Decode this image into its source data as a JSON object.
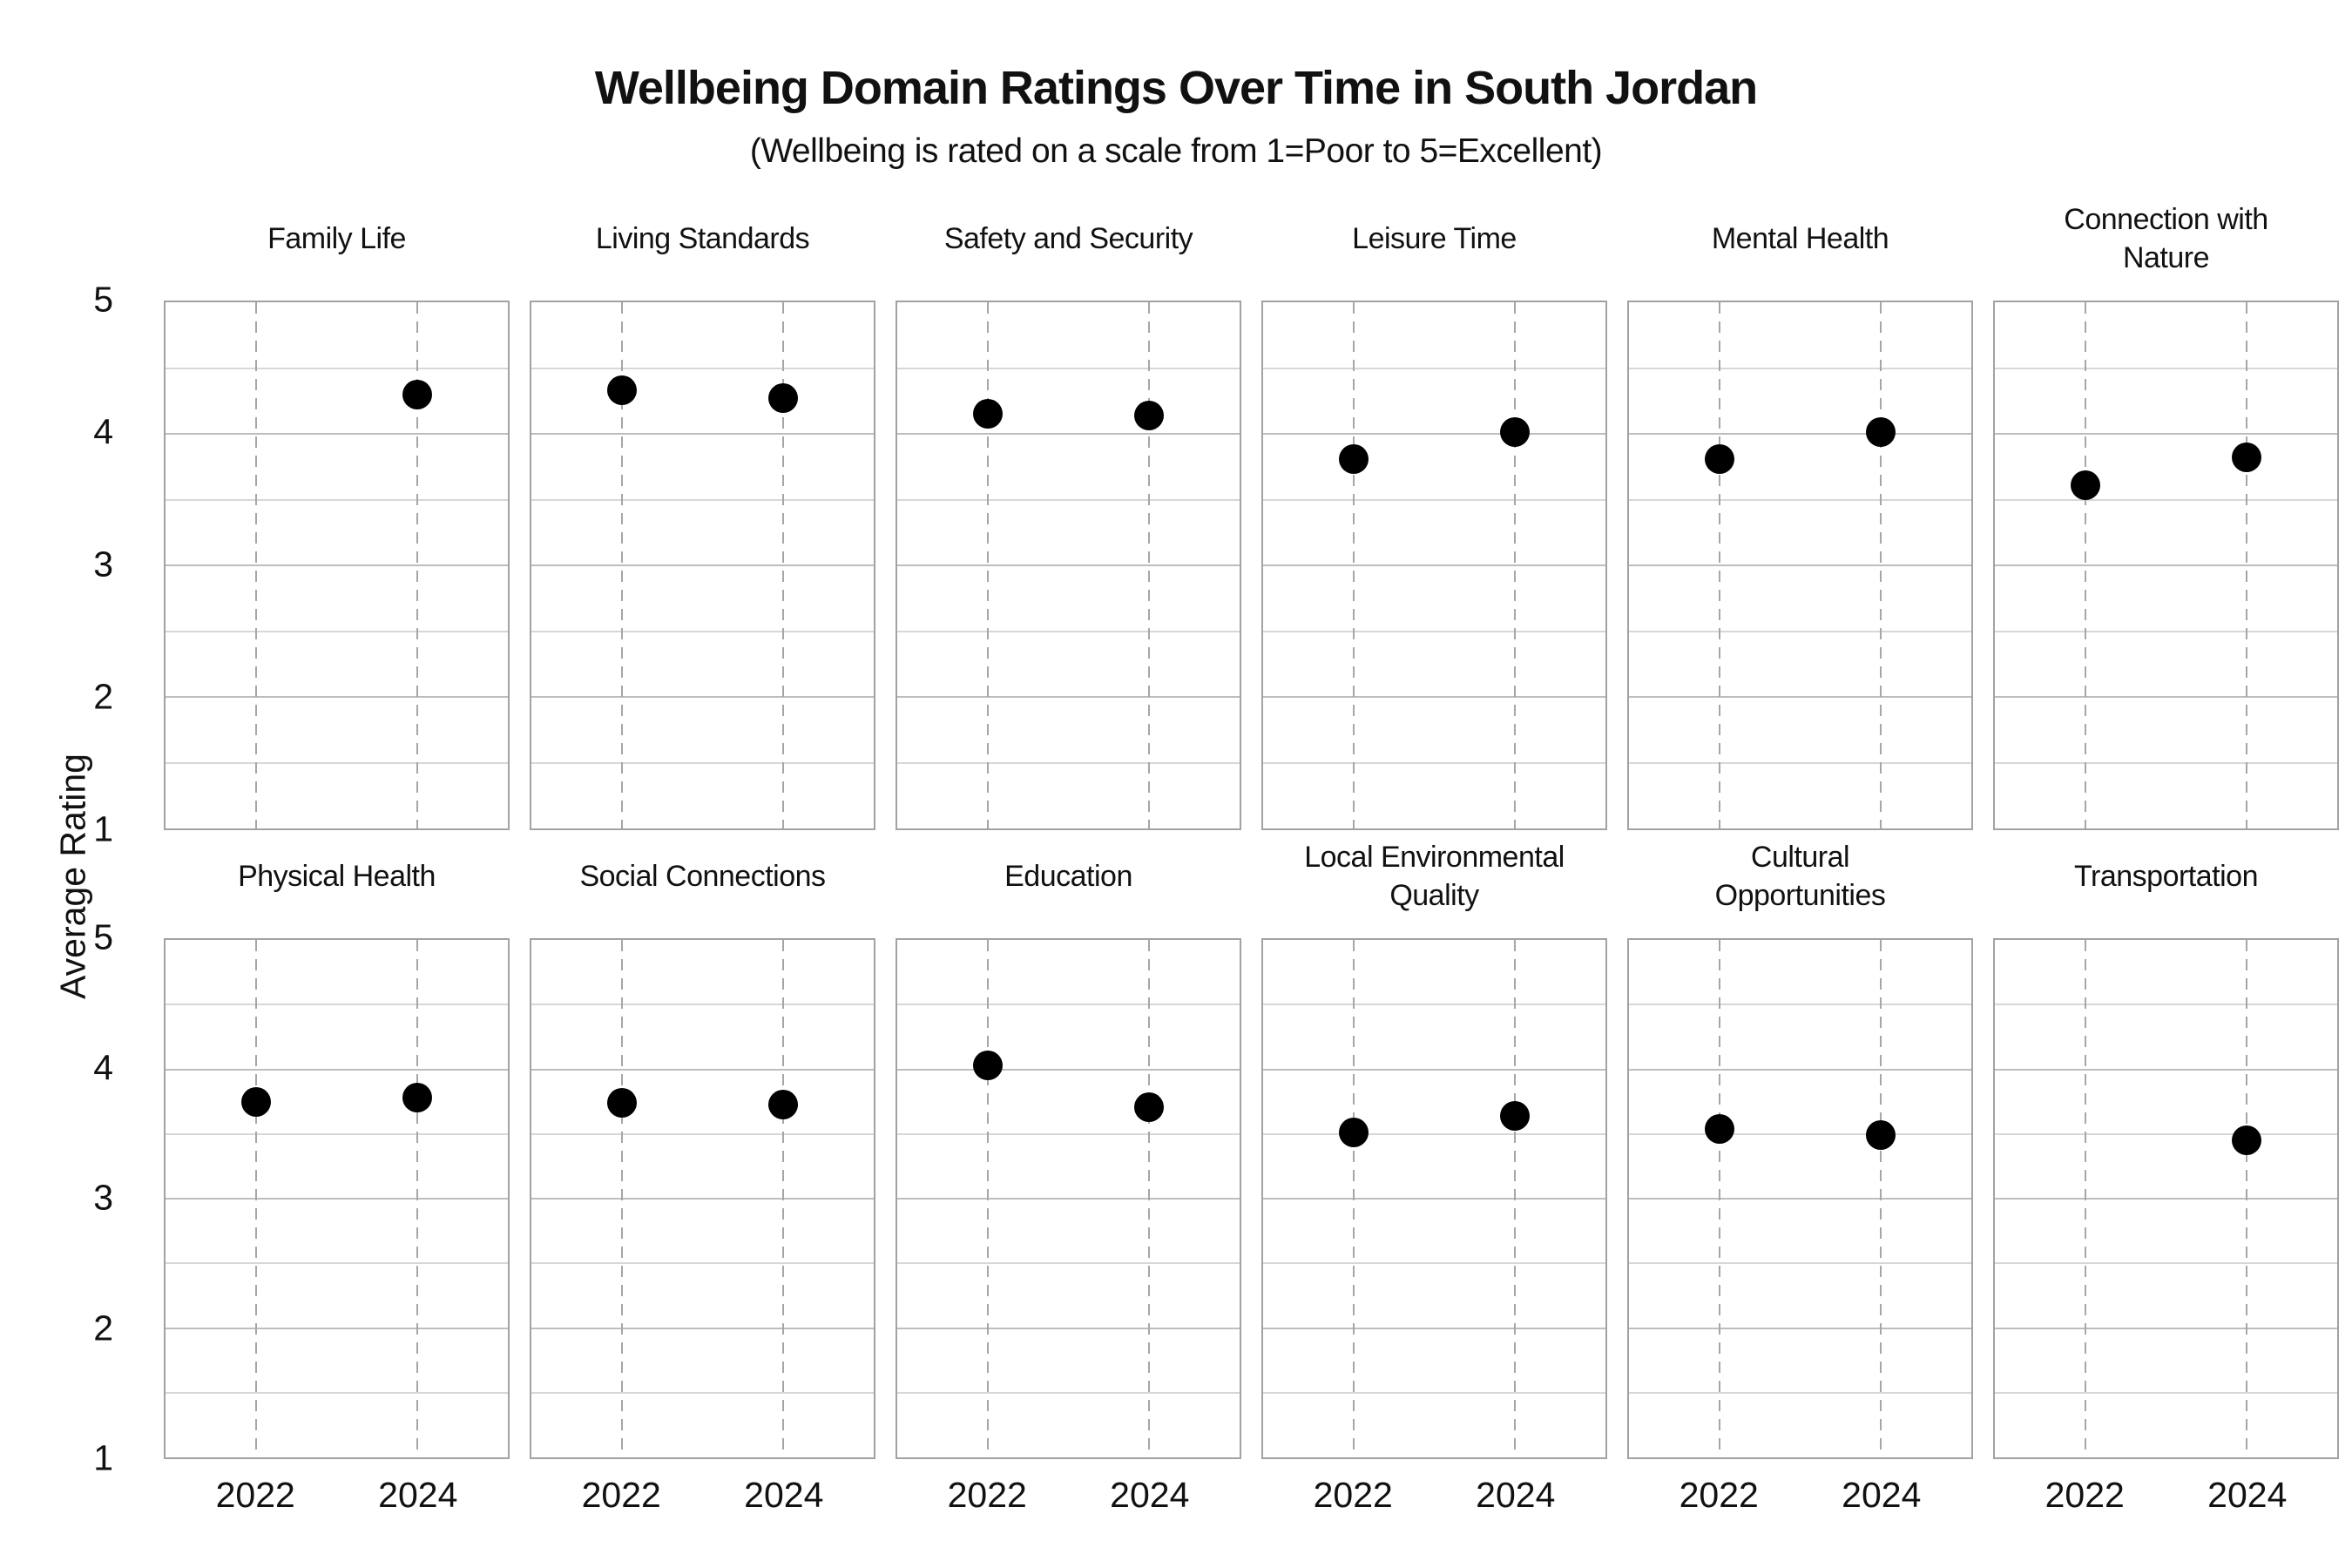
{
  "chart_data": {
    "type": "scatter",
    "title": "Wellbeing Domain Ratings Over Time in South Jordan",
    "subtitle": "(Wellbeing is rated on a scale from 1=Poor to 5=Excellent)",
    "ylabel": "Average Rating",
    "x_categories": [
      "2022",
      "2024"
    ],
    "ylim": [
      1,
      5
    ],
    "yticks": [
      5,
      4,
      3,
      2,
      1
    ],
    "minor_gridlines_every": 0.5,
    "grid": "on",
    "layout": {
      "rows": 2,
      "cols": 6
    },
    "marker_color": "#000000",
    "panels": [
      {
        "title": "Family Life",
        "values": [
          null,
          4.3
        ]
      },
      {
        "title": "Living Standards",
        "values": [
          4.33,
          4.27
        ]
      },
      {
        "title": "Safety and Security",
        "values": [
          4.15,
          4.14
        ]
      },
      {
        "title": "Leisure Time",
        "values": [
          3.81,
          4.01
        ]
      },
      {
        "title": "Mental Health",
        "values": [
          3.81,
          4.01
        ]
      },
      {
        "title": "Connection with\nNature",
        "values": [
          3.61,
          3.82
        ]
      },
      {
        "title": "Physical Health",
        "values": [
          3.75,
          3.78
        ]
      },
      {
        "title": "Social Connections",
        "values": [
          3.74,
          3.73
        ]
      },
      {
        "title": "Education",
        "values": [
          4.03,
          3.71
        ]
      },
      {
        "title": "Local Environmental\nQuality",
        "values": [
          3.51,
          3.64
        ]
      },
      {
        "title": "Cultural\nOpportunities",
        "values": [
          3.54,
          3.49
        ]
      },
      {
        "title": "Transportation",
        "values": [
          null,
          3.45
        ]
      }
    ]
  }
}
